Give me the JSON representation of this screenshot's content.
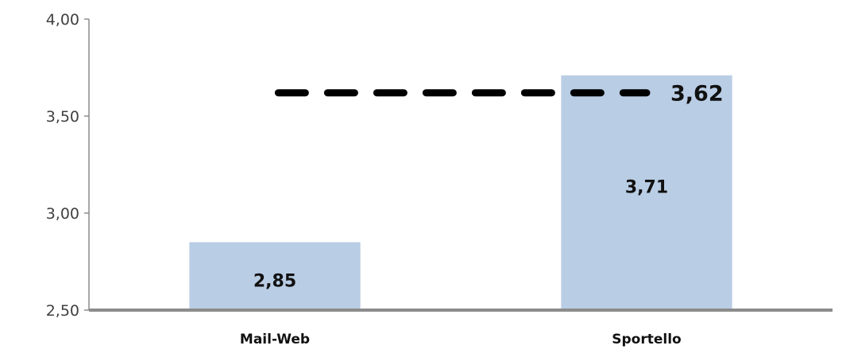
{
  "chart_data": {
    "type": "bar",
    "categories": [
      "Mail-Web",
      "Sportello"
    ],
    "values": [
      2.85,
      3.71
    ],
    "value_labels": [
      "2,85",
      "3,71"
    ],
    "ylim": [
      2.5,
      4.0
    ],
    "yticks": [
      2.5,
      3.0,
      3.5,
      4.0
    ],
    "ytick_labels": [
      "2,50",
      "3,00",
      "3,50",
      "4,00"
    ],
    "reference_line": {
      "value": 3.62,
      "label": "3,62",
      "style": "dashed"
    },
    "colors": {
      "bar": "#b9cde5",
      "axis": "#8c8c8c",
      "reference": "#000000"
    },
    "grid": false,
    "legend": "none"
  }
}
